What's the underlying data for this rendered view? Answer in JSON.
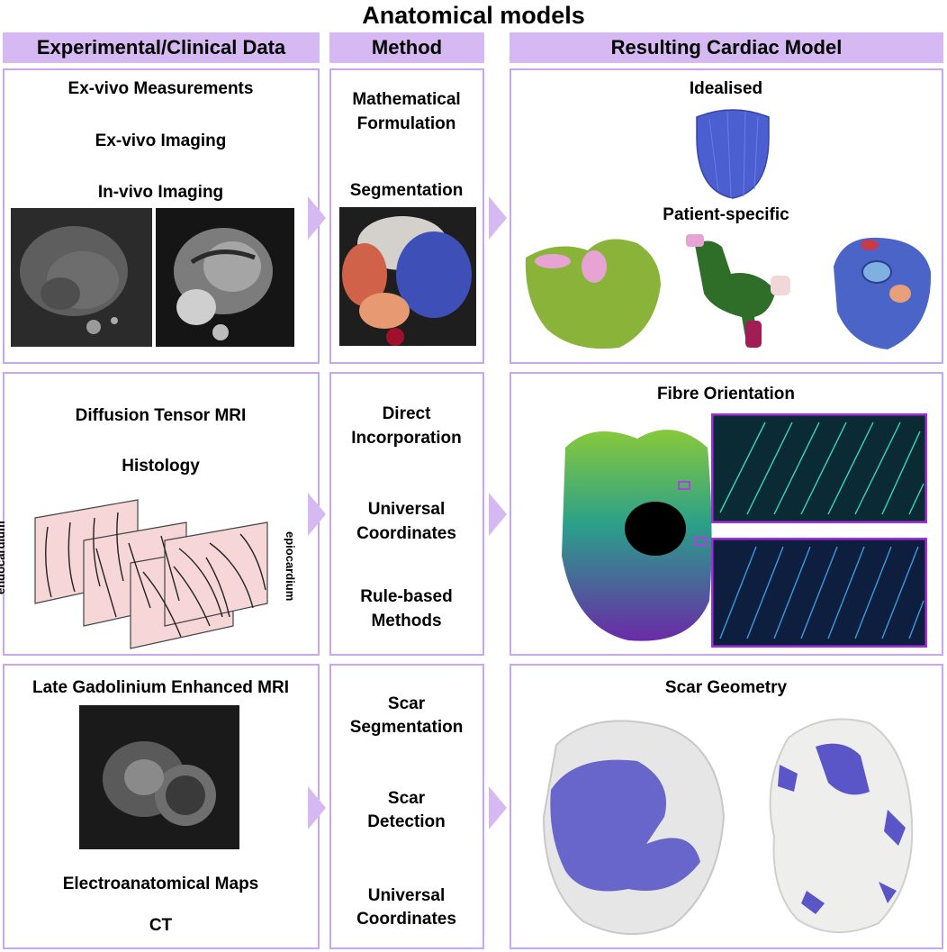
{
  "title": "Anatomical models",
  "headers": {
    "data": "Experimental/Clinical Data",
    "method": "Method",
    "result": "Resulting Cardiac Model"
  },
  "row1": {
    "data": [
      "Ex-vivo Measurements",
      "Ex-vivo Imaging",
      "In-vivo Imaging"
    ],
    "method": [
      "Mathematical",
      "Formulation",
      "Segmentation"
    ],
    "result": [
      "Idealised",
      "Patient-specific"
    ]
  },
  "row2": {
    "data": [
      "Diffusion Tensor MRI",
      "Histology"
    ],
    "layer_labels": [
      "endocardium",
      "epiocardium"
    ],
    "method": [
      "Direct",
      "Incorporation",
      "Universal",
      "Coordinates",
      "Rule-based",
      "Methods"
    ],
    "result": [
      "Fibre Orientation"
    ]
  },
  "row3": {
    "data": [
      "Late Gadolinium Enhanced MRI",
      "Electroanatomical Maps",
      "CT"
    ],
    "method": [
      "Scar",
      "Segmentation",
      "Scar",
      "Detection",
      "Universal",
      "Coordinates"
    ],
    "result": [
      "Scar Geometry"
    ]
  },
  "colors": {
    "accent": "#d6b8f2",
    "border": "#c9a6ee",
    "tissue": "#f6d6d6",
    "ventricle_blue": "#4c5fd0",
    "mesh_green": "#8ab33a",
    "scar_blue": "#5a56c8"
  }
}
